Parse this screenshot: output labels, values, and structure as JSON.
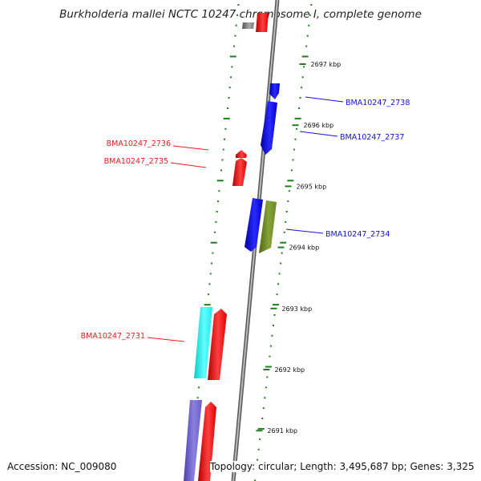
{
  "title": "Burkholderia mallei NCTC 10247 chromosome I, complete genome",
  "accession_text": "Accession: NC_009080",
  "summary_text": "Topology: circular; Length: 3,495,687 bp; Genes: 3,325",
  "colors": {
    "backbone": "#8c8c8c",
    "ruler_ticks": "#1e7d1e",
    "forward_gene": "#ee1c1c",
    "reverse_gene": "#1010dd",
    "olive_gene": "#6d8a25",
    "cyan_gene": "#22f0f0",
    "purple_gene": "#7060cc",
    "grey_gene": "#777777"
  },
  "ruler_labels": [
    {
      "kbp": 2697,
      "text": "2697 kbp"
    },
    {
      "kbp": 2696,
      "text": "2696 kbp"
    },
    {
      "kbp": 2695,
      "text": "2695 kbp"
    },
    {
      "kbp": 2694,
      "text": "2694 kbp"
    },
    {
      "kbp": 2693,
      "text": "2693 kbp"
    },
    {
      "kbp": 2692,
      "text": "2692 kbp"
    },
    {
      "kbp": 2691,
      "text": "2691 kbp"
    }
  ],
  "gene_labels": [
    {
      "text": "BMA10247_2738",
      "color": "#1010dd"
    },
    {
      "text": "BMA10247_2737",
      "color": "#1010dd"
    },
    {
      "text": "BMA10247_2736",
      "color": "#ee1c1c"
    },
    {
      "text": "BMA10247_2735",
      "color": "#ee1c1c"
    },
    {
      "text": "BMA10247_2734",
      "color": "#1010dd"
    },
    {
      "text": "BMA10247_2731",
      "color": "#ee1c1c"
    }
  ]
}
